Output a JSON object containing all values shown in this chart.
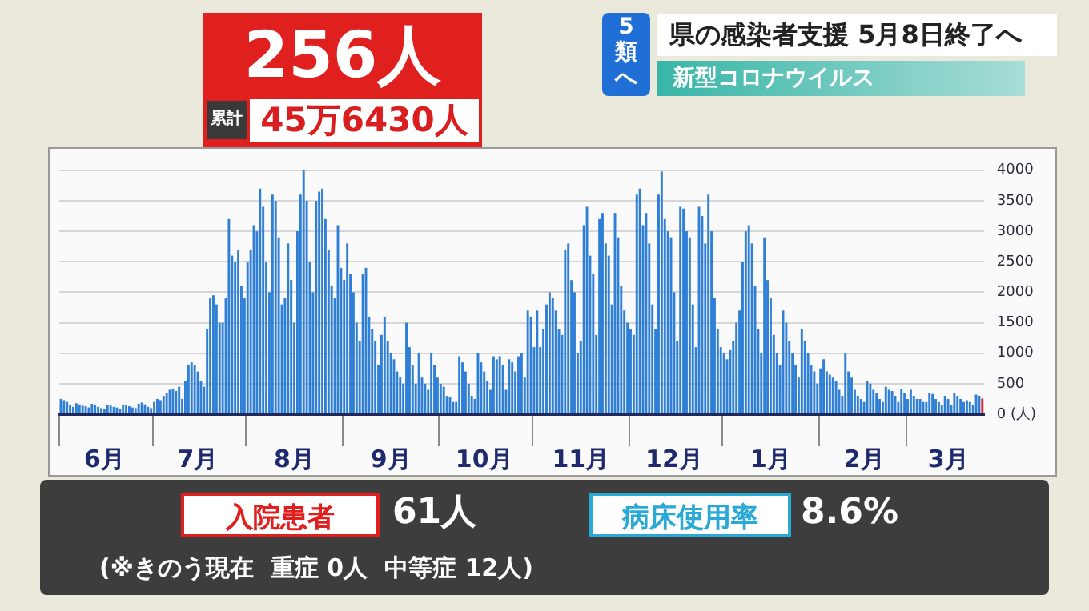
{
  "chart_data": {
    "type": "bar",
    "title": "県の感染者支援 5月8日終了へ",
    "subtitle": "新型コロナウイルス",
    "annotations": [
      "5類へ",
      "256人",
      "累計",
      "45万6430人",
      "入院患者",
      "61人",
      "病床使用率",
      "8.6%",
      "(※きのう現在  重症 0人  中等症 12人)"
    ],
    "categories": [
      null,
      null,
      null,
      null,
      null,
      null,
      null,
      null,
      null,
      null,
      null,
      null,
      null,
      null,
      "6月",
      null,
      null,
      null,
      null,
      null,
      null,
      null,
      null,
      null,
      null,
      null,
      null,
      null,
      null,
      null,
      null,
      null,
      null,
      null,
      null,
      null,
      null,
      null,
      null,
      null,
      null,
      null,
      null,
      null,
      "7月",
      null,
      null,
      null,
      null,
      null,
      null,
      null,
      null,
      null,
      null,
      null,
      null,
      null,
      null,
      null,
      null,
      null,
      null,
      null,
      null,
      null,
      null,
      null,
      null,
      null,
      null,
      null,
      null,
      null,
      null,
      "8月",
      null,
      null,
      null,
      null,
      null,
      null,
      null,
      null,
      null,
      null,
      null,
      null,
      null,
      null,
      null,
      null,
      null,
      null,
      null,
      null,
      null,
      null,
      null,
      null,
      null,
      null,
      null,
      null,
      null,
      null,
      "9月",
      null,
      null,
      null,
      null,
      null,
      null,
      null,
      null,
      null,
      null,
      null,
      null,
      null,
      null,
      null,
      null,
      null,
      null,
      null,
      null,
      null,
      null,
      null,
      null,
      null,
      null,
      null,
      null,
      null,
      "10月",
      null,
      null,
      null,
      null,
      null,
      null,
      null,
      null,
      null,
      null,
      null,
      null,
      null,
      null,
      null,
      null,
      null,
      null,
      null,
      null,
      null,
      null,
      null,
      null,
      null,
      null,
      null,
      null,
      null,
      null,
      "11月",
      null,
      null,
      null,
      null,
      null,
      null,
      null,
      null,
      null,
      null,
      null,
      null,
      null,
      null,
      null,
      null,
      null,
      null,
      null,
      null,
      null,
      null,
      null,
      null,
      null,
      null,
      null,
      null,
      null,
      "12月",
      null,
      null,
      null,
      null,
      null,
      null,
      null,
      null,
      null,
      null,
      null,
      null,
      null,
      null,
      null,
      null,
      null,
      null,
      null,
      null,
      null,
      null,
      null,
      null,
      null,
      null,
      null,
      null,
      null,
      null,
      "1月",
      null,
      null,
      null,
      null,
      null,
      null,
      null,
      null,
      null,
      null,
      null,
      null,
      null,
      null,
      null,
      null,
      null,
      null,
      null,
      null,
      null,
      null,
      null,
      null,
      null,
      null,
      null,
      null,
      null,
      "2月",
      null,
      null,
      null,
      null,
      null,
      null,
      null,
      null,
      null,
      null,
      null,
      null,
      null,
      null,
      null,
      null,
      null,
      null,
      null,
      null,
      null,
      null,
      null,
      null,
      null,
      null,
      "3月",
      null,
      null,
      null,
      null,
      null,
      null,
      null,
      null,
      null,
      null,
      null
    ],
    "series": [
      {
        "color": "#2f7fd6",
        "values": [
          250,
          230,
          200,
          150,
          120,
          180,
          160,
          140,
          130,
          110,
          170,
          150,
          120,
          100,
          90,
          150,
          140,
          120,
          110,
          90,
          160,
          150,
          130,
          110,
          100,
          170,
          190,
          160,
          120,
          100,
          200,
          250,
          230,
          300,
          350,
          400,
          420,
          380,
          450,
          250,
          550,
          800,
          850,
          800,
          700,
          550,
          450,
          1400,
          1900,
          1950,
          1800,
          1500,
          1500,
          1900,
          3200,
          2600,
          2500,
          2700,
          2100,
          1900,
          2500,
          2700,
          3100,
          3000,
          3700,
          3400,
          2500,
          2000,
          3600,
          3500,
          2900,
          1800,
          1900,
          2800,
          2200,
          1500,
          3000,
          3600,
          4000,
          3500,
          2500,
          2000,
          3500,
          3650,
          3700,
          3200,
          2700,
          2100,
          1900,
          3100,
          2400,
          2200,
          2800,
          2300,
          2000,
          1500,
          1200,
          2300,
          2400,
          1600,
          1400,
          1200,
          800,
          1300,
          1600,
          1200,
          1000,
          900,
          700,
          600,
          500,
          1500,
          1100,
          800,
          500,
          1000,
          600,
          500,
          400,
          1000,
          800,
          600,
          500,
          450,
          300,
          280,
          200,
          200,
          950,
          850,
          700,
          500,
          300,
          250,
          1000,
          850,
          700,
          550,
          400,
          950,
          900,
          950,
          800,
          400,
          900,
          850,
          700,
          950,
          1000,
          600,
          1700,
          1600,
          1100,
          1700,
          1100,
          1400,
          1800,
          2000,
          1900,
          1700,
          1400,
          1300,
          2700,
          2800,
          2200,
          2000,
          1000,
          1200,
          3100,
          3400,
          2600,
          2300,
          1300,
          3200,
          3300,
          2800,
          2600,
          1800,
          3300,
          2900,
          2100,
          1700,
          1500,
          1400,
          1300,
          3600,
          3700,
          3100,
          3300,
          2800,
          1800,
          1400,
          3600,
          3980,
          3200,
          3000,
          2900,
          2000,
          1200,
          3400,
          3370,
          3000,
          2900,
          1800,
          1100,
          3400,
          3250,
          2800,
          3600,
          3000,
          1900,
          1400,
          1100,
          1000,
          900,
          1050,
          1200,
          1500,
          1700,
          2500,
          3000,
          3100,
          2800,
          2100,
          1400,
          1000,
          2900,
          2200,
          1900,
          1300,
          1000,
          800,
          1700,
          1500,
          1200,
          1000,
          800,
          600,
          1400,
          1200,
          1000,
          800,
          700,
          500,
          750,
          900,
          700,
          650,
          600,
          550,
          400,
          300,
          1000,
          700,
          600,
          400,
          300,
          250,
          200,
          550,
          500,
          400,
          350,
          250,
          200,
          450,
          400,
          380,
          300,
          200,
          420,
          350,
          250,
          400,
          300,
          250,
          250,
          200,
          200,
          350,
          330,
          250,
          200,
          150,
          300,
          250,
          150,
          350,
          300,
          250,
          200,
          230,
          200,
          150,
          320,
          300,
          null
        ]
      },
      {
        "color": "#e8202a",
        "values": [
          null,
          null,
          null,
          null,
          null,
          null,
          null,
          null,
          null,
          null,
          null,
          null,
          null,
          null,
          null,
          null,
          null,
          null,
          null,
          null,
          null,
          null,
          null,
          null,
          null,
          null,
          null,
          null,
          null,
          null,
          null,
          null,
          null,
          null,
          null,
          null,
          null,
          null,
          null,
          null,
          null,
          null,
          null,
          null,
          null,
          null,
          null,
          null,
          null,
          null,
          null,
          null,
          null,
          null,
          null,
          null,
          null,
          null,
          null,
          null,
          null,
          null,
          null,
          null,
          null,
          null,
          null,
          null,
          null,
          null,
          null,
          null,
          null,
          null,
          null,
          null,
          null,
          null,
          null,
          null,
          null,
          null,
          null,
          null,
          null,
          null,
          null,
          null,
          null,
          null,
          null,
          null,
          null,
          null,
          null,
          null,
          null,
          null,
          null,
          null,
          null,
          null,
          null,
          null,
          null,
          null,
          null,
          null,
          null,
          null,
          null,
          null,
          null,
          null,
          null,
          null,
          null,
          null,
          null,
          null,
          null,
          null,
          null,
          null,
          null,
          null,
          null,
          null,
          null,
          null,
          null,
          null,
          null,
          null,
          null,
          null,
          null,
          null,
          null,
          null,
          null,
          null,
          null,
          null,
          null,
          null,
          null,
          null,
          null,
          null,
          null,
          null,
          null,
          null,
          null,
          null,
          null,
          null,
          null,
          null,
          null,
          null,
          null,
          null,
          null,
          null,
          null,
          null,
          null,
          null,
          null,
          null,
          null,
          null,
          null,
          null,
          null,
          null,
          null,
          null,
          null,
          null,
          null,
          null,
          null,
          null,
          null,
          null,
          null,
          null,
          null,
          null,
          null,
          null,
          null,
          null,
          null,
          null,
          null,
          null,
          null,
          null,
          null,
          null,
          null,
          null,
          null,
          null,
          null,
          null,
          null,
          null,
          null,
          null,
          null,
          null,
          null,
          null,
          null,
          null,
          null,
          null,
          null,
          null,
          null,
          null,
          null,
          null,
          null,
          null,
          null,
          null,
          null,
          null,
          null,
          null,
          null,
          null,
          null,
          null,
          null,
          null,
          null,
          null,
          null,
          null,
          null,
          null,
          null,
          null,
          null,
          null,
          null,
          null,
          null,
          null,
          null,
          null,
          null,
          null,
          null,
          null,
          null,
          null,
          null,
          null,
          null,
          null,
          null,
          null,
          null,
          null,
          null,
          null,
          null,
          null,
          null,
          null,
          null,
          null,
          null,
          null,
          null,
          null,
          null,
          null,
          null,
          null,
          null,
          null,
          null,
          null,
          null,
          null,
          null,
          null,
          256
        ]
      }
    ],
    "ylim": [
      0,
      4000
    ],
    "yticks": [
      {
        "value": 0,
        "label": "0 (人)"
      },
      500,
      1000,
      1500,
      2000,
      2500,
      3000,
      3500,
      4000
    ],
    "grid": "y",
    "legend": false
  }
}
